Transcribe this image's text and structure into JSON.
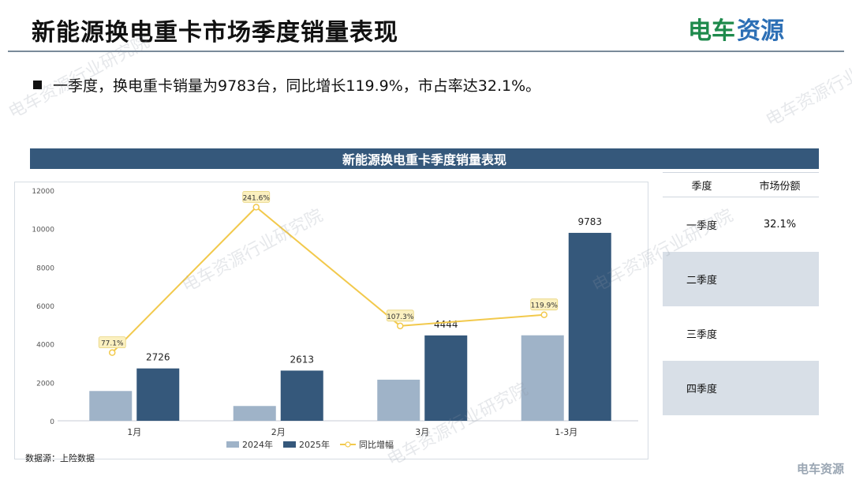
{
  "page": {
    "title": "新能源换电重卡市场季度销量表现",
    "bullet": "一季度，换电重卡销量为9783台，同比增长119.9%，市占率达32.1%。",
    "source": "数据源：上险数据",
    "watermark": "电车资源行业研究院",
    "corner_mark": "电车资源"
  },
  "logo": {
    "text_a": "电车",
    "text_b": "资源"
  },
  "chart_title": "新能源换电重卡季度销量表现",
  "chart_data": {
    "type": "bar",
    "categories": [
      "1月",
      "2月",
      "3月",
      "1-3月"
    ],
    "series": [
      {
        "name": "2024年",
        "values": [
          1550,
          770,
          2140,
          4450
        ],
        "color": "#9fb3c8"
      },
      {
        "name": "2025年",
        "values": [
          2726,
          2613,
          4444,
          9783
        ],
        "color": "#35587b"
      }
    ],
    "line_series": {
      "name": "同比增幅",
      "values": [
        77.1,
        241.6,
        107.3,
        119.9
      ],
      "labels": [
        "77.1%",
        "241.6%",
        "107.3%",
        "119.9%"
      ],
      "color": "#f2c94c"
    },
    "yticks": [
      0,
      2000,
      4000,
      6000,
      8000,
      10000,
      12000
    ],
    "ylim": [
      0,
      12000
    ],
    "line_ylim": [
      0,
      250
    ],
    "legend": "bottom",
    "grid": false
  },
  "share_table": {
    "headers": [
      "季度",
      "市场份额"
    ],
    "rows": [
      {
        "quarter": "一季度",
        "share": "32.1%"
      },
      {
        "quarter": "二季度",
        "share": ""
      },
      {
        "quarter": "三季度",
        "share": ""
      },
      {
        "quarter": "四季度",
        "share": ""
      }
    ]
  }
}
